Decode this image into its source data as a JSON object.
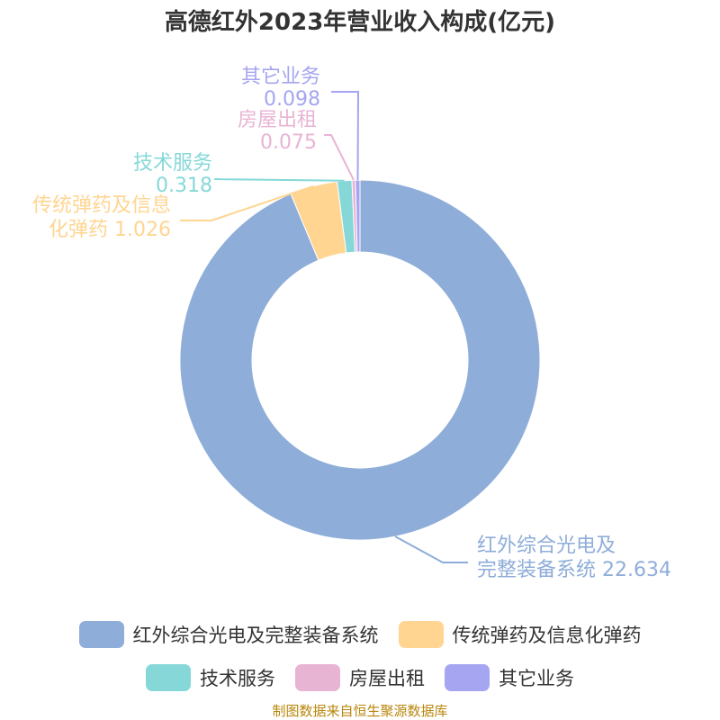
{
  "chart_data": {
    "type": "pie",
    "title": "高德红外2023年营业收入构成(亿元)",
    "series": [
      {
        "name": "红外综合光电及完整装备系统",
        "value": 22.634,
        "color": "#8eadd9",
        "label_lines": [
          "红外综合光电及",
          "完整装备系统 22.634"
        ]
      },
      {
        "name": "传统弹药及信息化弹药",
        "value": 1.026,
        "color": "#ffd591",
        "label_lines": [
          "传统弹药及信息",
          "化弹药 1.026"
        ]
      },
      {
        "name": "技术服务",
        "value": 0.318,
        "color": "#86d8d8",
        "label_lines": [
          "技术服务",
          "0.318"
        ]
      },
      {
        "name": "房屋出租",
        "value": 0.075,
        "color": "#e8b4d4",
        "label_lines": [
          "房屋出租",
          "0.075"
        ]
      },
      {
        "name": "其它业务",
        "value": 0.098,
        "color": "#a5a5f2",
        "label_lines": [
          "其它业务",
          "0.098"
        ]
      }
    ]
  },
  "source_note": "制图数据来自恒生聚源数据库"
}
